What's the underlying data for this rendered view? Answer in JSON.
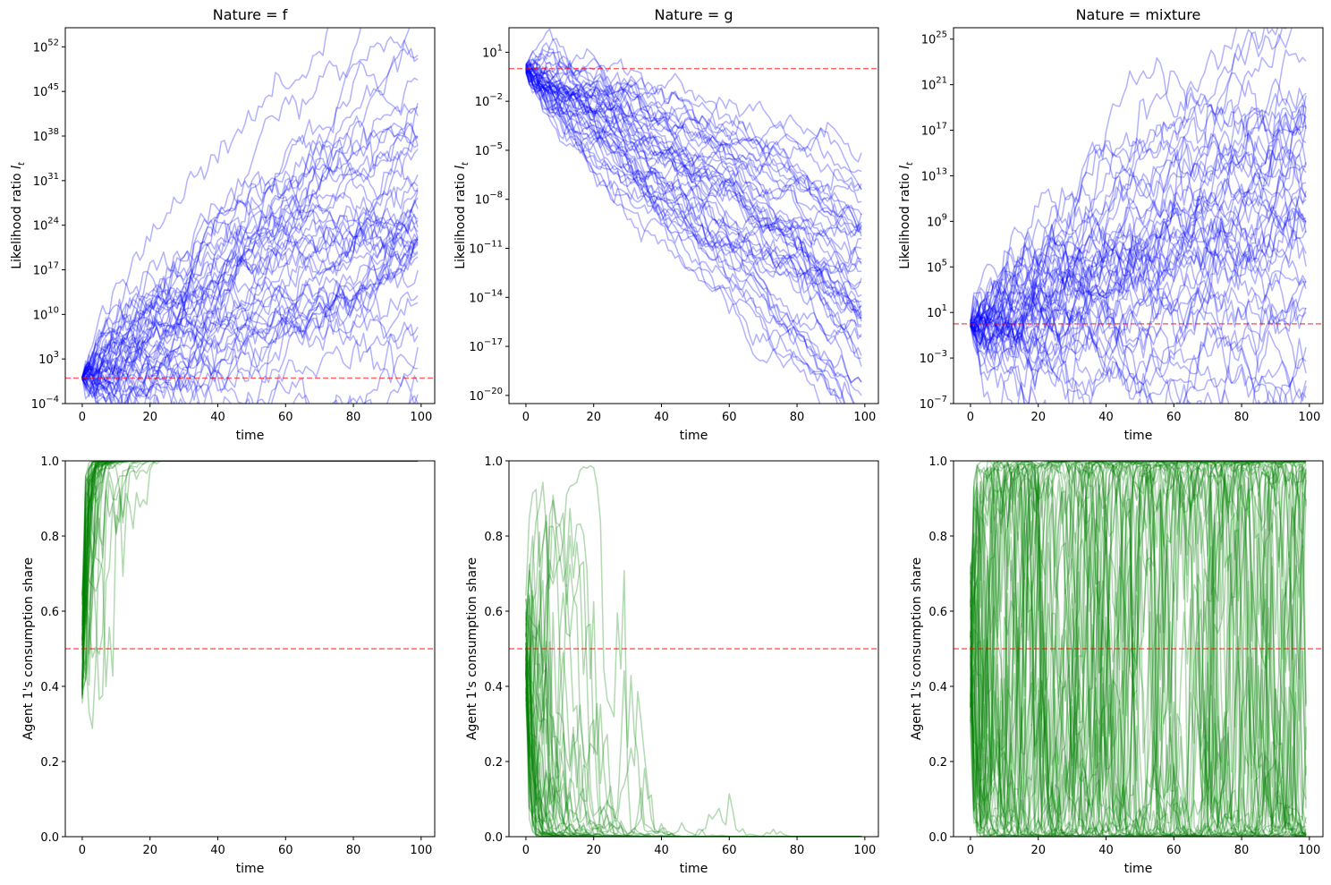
{
  "chart_data": [
    {
      "type": "line",
      "id": "lr-f",
      "title": "Nature = f",
      "xlabel": "time",
      "ylabel": "Likelihood ratio",
      "ylabel_sub": "t",
      "ylabel_var": "l",
      "yscale": "log",
      "xlim": [
        -5,
        104
      ],
      "ylim_log10": [
        -4,
        55
      ],
      "xticks": [
        0,
        20,
        40,
        60,
        80,
        100
      ],
      "yticks": [
        {
          "base": "10",
          "exp": "−4",
          "log10": -4
        },
        {
          "base": "10",
          "exp": "3",
          "log10": 3
        },
        {
          "base": "10",
          "exp": "10",
          "log10": 10
        },
        {
          "base": "10",
          "exp": "17",
          "log10": 17
        },
        {
          "base": "10",
          "exp": "24",
          "log10": 24
        },
        {
          "base": "10",
          "exp": "31",
          "log10": 31
        },
        {
          "base": "10",
          "exp": "38",
          "log10": 38
        },
        {
          "base": "10",
          "exp": "45",
          "log10": 45
        },
        {
          "base": "10",
          "exp": "52",
          "log10": 52
        }
      ],
      "reference_line_log10": 0,
      "series_color": "#0000ff",
      "reference_color": "#ff0000",
      "n_series": 50,
      "n_points": 100,
      "log10_start": 0,
      "log10_mean_end": 28,
      "log10_spread_end": 9,
      "step_noise": 1.3,
      "seed": 11
    },
    {
      "type": "line",
      "id": "lr-g",
      "title": "Nature = g",
      "xlabel": "time",
      "ylabel": "Likelihood ratio",
      "ylabel_sub": "t",
      "ylabel_var": "l",
      "yscale": "log",
      "xlim": [
        -5,
        104
      ],
      "ylim_log10": [
        -20.5,
        2.5
      ],
      "xticks": [
        0,
        20,
        40,
        60,
        80,
        100
      ],
      "yticks": [
        {
          "base": "10",
          "exp": "−20",
          "log10": -20
        },
        {
          "base": "10",
          "exp": "−17",
          "log10": -17
        },
        {
          "base": "10",
          "exp": "−14",
          "log10": -14
        },
        {
          "base": "10",
          "exp": "−11",
          "log10": -11
        },
        {
          "base": "10",
          "exp": "−8",
          "log10": -8
        },
        {
          "base": "10",
          "exp": "−5",
          "log10": -5
        },
        {
          "base": "10",
          "exp": "−2",
          "log10": -2
        },
        {
          "base": "10",
          "exp": "1",
          "log10": 1
        }
      ],
      "reference_line_log10": 0,
      "series_color": "#0000ff",
      "reference_color": "#ff0000",
      "n_series": 50,
      "n_points": 100,
      "log10_start": 0,
      "log10_mean_end": -14,
      "log10_spread_end": 2.2,
      "step_noise": 0.35,
      "seed": 23
    },
    {
      "type": "line",
      "id": "lr-mixture",
      "title": "Nature = mixture",
      "xlabel": "time",
      "ylabel": "Likelihood ratio",
      "ylabel_sub": "t",
      "ylabel_var": "l",
      "yscale": "log",
      "xlim": [
        -5,
        104
      ],
      "ylim_log10": [
        -7,
        26
      ],
      "xticks": [
        0,
        20,
        40,
        60,
        80,
        100
      ],
      "yticks": [
        {
          "base": "10",
          "exp": "−7",
          "log10": -7
        },
        {
          "base": "10",
          "exp": "−3",
          "log10": -3
        },
        {
          "base": "10",
          "exp": "1",
          "log10": 1
        },
        {
          "base": "10",
          "exp": "5",
          "log10": 5
        },
        {
          "base": "10",
          "exp": "9",
          "log10": 9
        },
        {
          "base": "10",
          "exp": "13",
          "log10": 13
        },
        {
          "base": "10",
          "exp": "17",
          "log10": 17
        },
        {
          "base": "10",
          "exp": "21",
          "log10": 21
        },
        {
          "base": "10",
          "exp": "25",
          "log10": 25
        }
      ],
      "reference_line_log10": 0,
      "series_color": "#0000ff",
      "reference_color": "#ff0000",
      "n_series": 50,
      "n_points": 100,
      "log10_start": 0,
      "log10_mean_end": 8,
      "log10_spread_end": 6,
      "step_noise": 1.0,
      "seed": 37
    },
    {
      "type": "line",
      "id": "share-f",
      "xlabel": "time",
      "ylabel": "Agent 1's consumption share",
      "yscale": "linear",
      "xlim": [
        -5,
        104
      ],
      "ylim": [
        0,
        1
      ],
      "xticks": [
        0,
        20,
        40,
        60,
        80,
        100
      ],
      "yticks": [
        "0.0",
        "0.2",
        "0.4",
        "0.6",
        "0.8",
        "1.0"
      ],
      "reference_line": 0.5,
      "series_color": "#008000",
      "reference_color": "#ff0000",
      "n_series": 50,
      "n_points": 100,
      "saturates_to": 1,
      "typical_saturation_time": 8,
      "seed": 51
    },
    {
      "type": "line",
      "id": "share-g",
      "xlabel": "time",
      "ylabel": "Agent 1's consumption share",
      "yscale": "linear",
      "xlim": [
        -5,
        104
      ],
      "ylim": [
        0,
        1
      ],
      "xticks": [
        0,
        20,
        40,
        60,
        80,
        100
      ],
      "yticks": [
        "0.0",
        "0.2",
        "0.4",
        "0.6",
        "0.8",
        "1.0"
      ],
      "reference_line": 0.5,
      "series_color": "#008000",
      "reference_color": "#ff0000",
      "n_series": 50,
      "n_points": 100,
      "saturates_to": 0,
      "typical_saturation_time": 20,
      "seed": 67
    },
    {
      "type": "line",
      "id": "share-mixture",
      "xlabel": "time",
      "ylabel": "Agent 1's consumption share",
      "yscale": "linear",
      "xlim": [
        -5,
        104
      ],
      "ylim": [
        0,
        1
      ],
      "xticks": [
        0,
        20,
        40,
        60,
        80,
        100
      ],
      "yticks": [
        "0.0",
        "0.2",
        "0.4",
        "0.6",
        "0.8",
        "1.0"
      ],
      "reference_line": 0.5,
      "series_color": "#008000",
      "reference_color": "#ff0000",
      "n_series": 50,
      "n_points": 100,
      "saturates_to": "oscillating",
      "seed": 83
    }
  ]
}
